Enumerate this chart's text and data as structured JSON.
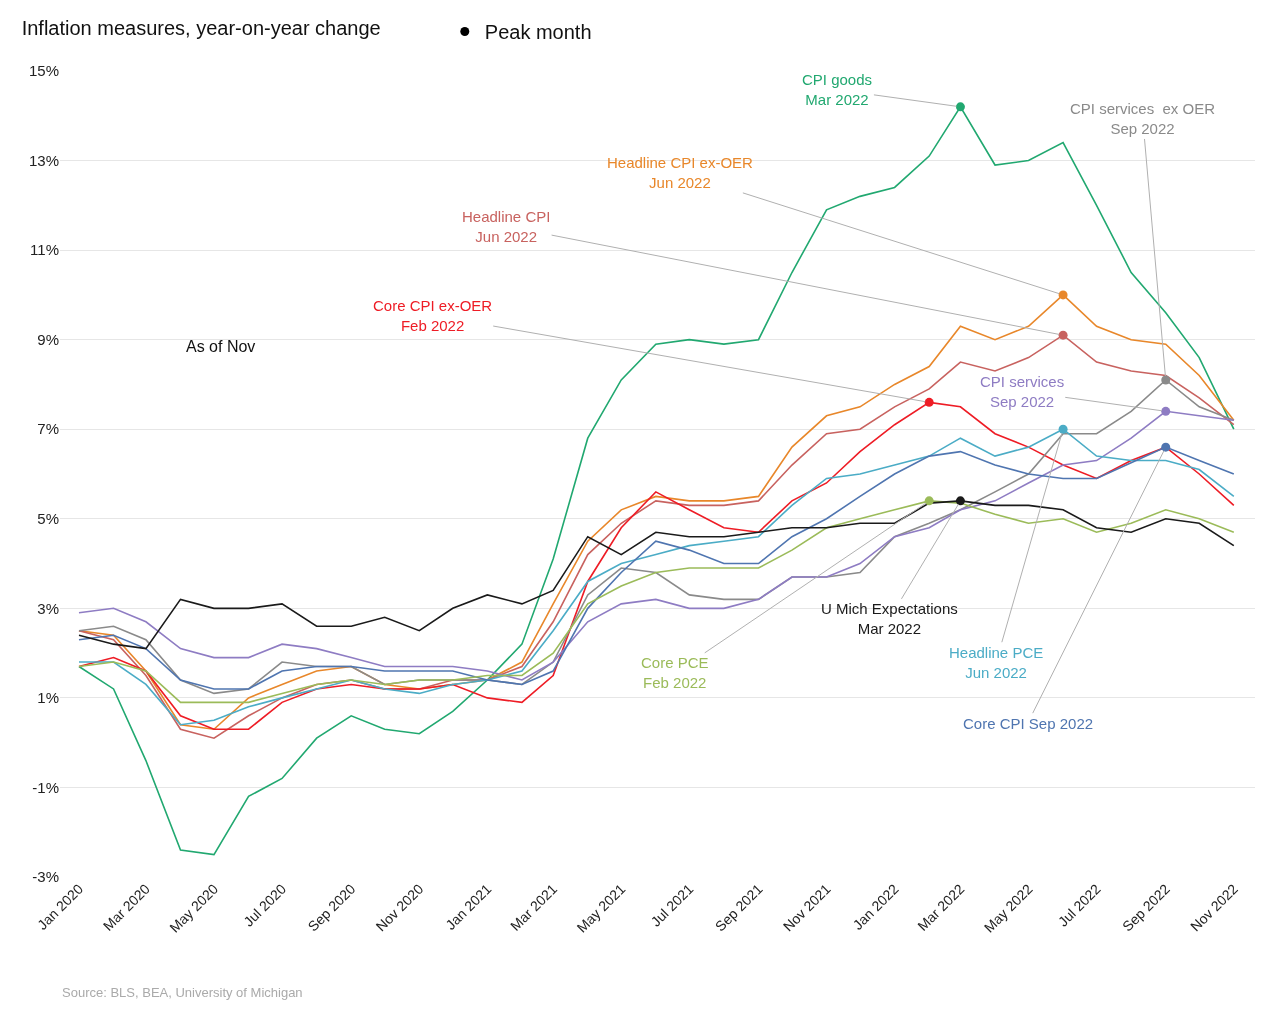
{
  "chart_data": {
    "type": "line",
    "title": "Inflation measures, year-on-year change",
    "x": [
      "2020-01",
      "2020-02",
      "2020-03",
      "2020-04",
      "2020-05",
      "2020-06",
      "2020-07",
      "2020-08",
      "2020-09",
      "2020-10",
      "2020-11",
      "2020-12",
      "2021-01",
      "2021-02",
      "2021-03",
      "2021-04",
      "2021-05",
      "2021-06",
      "2021-07",
      "2021-08",
      "2021-09",
      "2021-10",
      "2021-11",
      "2021-12",
      "2022-01",
      "2022-02",
      "2022-03",
      "2022-04",
      "2022-05",
      "2022-06",
      "2022-07",
      "2022-08",
      "2022-09",
      "2022-10",
      "2022-11"
    ],
    "xlim": [
      "2019-12-15",
      "2022-11-20"
    ],
    "xticks": [
      {
        "value": "2020-01",
        "label": "Jan 2020"
      },
      {
        "value": "2020-03",
        "label": "Mar 2020"
      },
      {
        "value": "2020-05",
        "label": "May 2020"
      },
      {
        "value": "2020-07",
        "label": "Jul 2020"
      },
      {
        "value": "2020-09",
        "label": "Sep 2020"
      },
      {
        "value": "2020-11",
        "label": "Nov 2020"
      },
      {
        "value": "2021-01",
        "label": "Jan 2021"
      },
      {
        "value": "2021-03",
        "label": "Mar 2021"
      },
      {
        "value": "2021-05",
        "label": "May 2021"
      },
      {
        "value": "2021-07",
        "label": "Jul 2021"
      },
      {
        "value": "2021-09",
        "label": "Sep 2021"
      },
      {
        "value": "2021-11",
        "label": "Nov 2021"
      },
      {
        "value": "2022-01",
        "label": "Jan 2022"
      },
      {
        "value": "2022-03",
        "label": "Mar 2022"
      },
      {
        "value": "2022-05",
        "label": "May 2022"
      },
      {
        "value": "2022-07",
        "label": "Jul 2022"
      },
      {
        "value": "2022-09",
        "label": "Sep 2022"
      },
      {
        "value": "2022-11",
        "label": "Nov 2022"
      }
    ],
    "ylim": [
      -3,
      15
    ],
    "yticks": [
      {
        "value": -3,
        "label": "-3%"
      },
      {
        "value": -1,
        "label": "-1%"
      },
      {
        "value": 1,
        "label": "1%"
      },
      {
        "value": 3,
        "label": "3%"
      },
      {
        "value": 5,
        "label": "5%"
      },
      {
        "value": 7,
        "label": "7%"
      },
      {
        "value": 9,
        "label": "9%"
      },
      {
        "value": 11,
        "label": "11%"
      },
      {
        "value": 13,
        "label": "13%"
      },
      {
        "value": 15,
        "label": "15%"
      }
    ],
    "grid": "y",
    "legend": "top left",
    "marker": "none",
    "line_style": "solid",
    "series": [
      {
        "color": "#21a870",
        "values": [
          1.7,
          1.2,
          -0.4,
          -2.4,
          -2.5,
          -1.2,
          -0.8,
          0.1,
          0.6,
          0.3,
          0.2,
          0.7,
          1.4,
          2.2,
          4.1,
          6.8,
          8.1,
          8.9,
          9.0,
          8.9,
          9.0,
          10.5,
          11.9,
          12.2,
          12.4,
          13.1,
          14.2,
          12.9,
          13.0,
          13.4,
          12.0,
          10.5,
          9.6,
          8.6,
          7.0
        ]
      },
      {
        "color": "#e8872a",
        "values": [
          2.5,
          2.4,
          1.6,
          0.4,
          0.3,
          1.0,
          1.3,
          1.6,
          1.7,
          1.3,
          1.2,
          1.3,
          1.4,
          1.8,
          3.1,
          4.5,
          5.2,
          5.5,
          5.4,
          5.4,
          5.5,
          6.6,
          7.3,
          7.5,
          8.0,
          8.4,
          9.3,
          9.0,
          9.3,
          10.0,
          9.3,
          9.0,
          8.9,
          8.2,
          7.2
        ]
      },
      {
        "color": "#c8625f",
        "values": [
          2.5,
          2.3,
          1.5,
          0.3,
          0.1,
          0.6,
          1.0,
          1.3,
          1.4,
          1.2,
          1.2,
          1.4,
          1.4,
          1.7,
          2.7,
          4.2,
          4.9,
          5.4,
          5.3,
          5.3,
          5.4,
          6.2,
          6.9,
          7.0,
          7.5,
          7.9,
          8.5,
          8.3,
          8.6,
          9.1,
          8.5,
          8.3,
          8.2,
          7.7,
          7.1
        ]
      },
      {
        "color": "#ee1c25",
        "values": [
          1.7,
          1.9,
          1.6,
          0.6,
          0.3,
          0.3,
          0.9,
          1.2,
          1.3,
          1.2,
          1.2,
          1.3,
          1.0,
          0.9,
          1.5,
          3.6,
          4.8,
          5.6,
          5.2,
          4.8,
          4.7,
          5.4,
          5.8,
          6.5,
          7.1,
          7.6,
          7.5,
          6.9,
          6.6,
          6.2,
          5.9,
          6.3,
          6.6,
          6.0,
          5.3
        ]
      },
      {
        "color": "#8a8a8a",
        "values": [
          2.5,
          2.6,
          2.3,
          1.4,
          1.1,
          1.2,
          1.8,
          1.7,
          1.7,
          1.3,
          1.4,
          1.4,
          1.4,
          1.3,
          1.8,
          3.3,
          3.9,
          3.8,
          3.3,
          3.2,
          3.2,
          3.7,
          3.7,
          3.8,
          4.6,
          4.9,
          5.2,
          5.6,
          6.0,
          6.9,
          6.9,
          7.4,
          8.1,
          7.5,
          7.2
        ]
      },
      {
        "color": "#8e7cc3",
        "values": [
          2.9,
          3.0,
          2.7,
          2.1,
          1.9,
          1.9,
          2.2,
          2.1,
          1.9,
          1.7,
          1.7,
          1.7,
          1.6,
          1.4,
          1.8,
          2.7,
          3.1,
          3.2,
          3.0,
          3.0,
          3.2,
          3.7,
          3.7,
          4.0,
          4.6,
          4.8,
          5.2,
          5.4,
          5.8,
          6.2,
          6.3,
          6.8,
          7.4,
          7.3,
          7.2
        ]
      },
      {
        "color": "#4bacc6",
        "values": [
          1.8,
          1.8,
          1.3,
          0.4,
          0.5,
          0.8,
          1.0,
          1.2,
          1.4,
          1.2,
          1.1,
          1.3,
          1.4,
          1.6,
          2.5,
          3.6,
          4.0,
          4.2,
          4.4,
          4.5,
          4.6,
          5.3,
          5.9,
          6.0,
          6.2,
          6.4,
          6.8,
          6.4,
          6.6,
          7.0,
          6.4,
          6.3,
          6.3,
          6.1,
          5.5
        ]
      },
      {
        "color": "#4f75b0",
        "values": [
          2.3,
          2.4,
          2.1,
          1.4,
          1.2,
          1.2,
          1.6,
          1.7,
          1.7,
          1.6,
          1.6,
          1.6,
          1.4,
          1.3,
          1.6,
          3.0,
          3.8,
          4.5,
          4.3,
          4.0,
          4.0,
          4.6,
          5.0,
          5.5,
          6.0,
          6.4,
          6.5,
          6.2,
          6.0,
          5.9,
          5.9,
          6.25,
          6.6,
          6.3,
          6.0
        ]
      },
      {
        "color": "#9bbb59",
        "values": [
          1.7,
          1.8,
          1.6,
          0.9,
          0.9,
          0.9,
          1.1,
          1.3,
          1.4,
          1.3,
          1.4,
          1.4,
          1.5,
          1.5,
          2.0,
          3.1,
          3.5,
          3.8,
          3.9,
          3.9,
          3.9,
          4.3,
          4.8,
          5.0,
          5.2,
          5.4,
          5.35,
          5.1,
          4.9,
          5.0,
          4.7,
          4.9,
          5.2,
          5.0,
          4.7
        ]
      },
      {
        "color": "#1a1a1a",
        "values": [
          2.4,
          2.2,
          2.1,
          3.2,
          3.0,
          3.0,
          3.1,
          2.6,
          2.6,
          2.8,
          2.5,
          3.0,
          3.3,
          3.1,
          3.4,
          4.6,
          4.2,
          4.7,
          4.6,
          4.6,
          4.7,
          4.8,
          4.8,
          4.9,
          4.9,
          5.35,
          5.4,
          5.3,
          5.3,
          5.2,
          4.8,
          4.7,
          5.0,
          4.9,
          4.4
        ]
      },
      {
        "name": "Peak month",
        "type": "scatter",
        "marker": "circle",
        "color": "#000000",
        "x": [
          "2022-03",
          "2022-06",
          "2022-06",
          "2022-02",
          "2022-09",
          "2022-09",
          "2022-06",
          "2022-09",
          "2022-02",
          "2022-03"
        ],
        "values": [
          14.2,
          10.0,
          9.1,
          7.6,
          8.1,
          7.4,
          7.0,
          6.6,
          5.4,
          5.4
        ],
        "colors": [
          "#21a870",
          "#e8872a",
          "#c8625f",
          "#ee1c25",
          "#8a8a8a",
          "#8e7cc3",
          "#4bacc6",
          "#4f75b0",
          "#9bbb59",
          "#1a1a1a"
        ]
      }
    ],
    "annotations": [
      {
        "text": "CPI goods\nMar 2022",
        "x": "2022-03",
        "y": 14.2
      },
      {
        "text": "Headline CPI ex-OER\nJun 2022",
        "x": "2022-06",
        "y": 10.0
      },
      {
        "text": "Headline CPI\nJun 2022",
        "x": "2022-06",
        "y": 9.1
      },
      {
        "text": "Core CPI ex-OER\nFeb 2022",
        "x": "2022-02",
        "y": 7.6
      },
      {
        "text": "CPI services  ex OER\nSep 2022",
        "x": "2022-09",
        "y": 8.1
      },
      {
        "text": "CPI services\nSep 2022",
        "x": "2022-09",
        "y": 7.4
      },
      {
        "text": "Headline PCE\nJun 2022",
        "x": "2022-06",
        "y": 7.0
      },
      {
        "text": "Core CPI Sep 2022",
        "x": "2022-09",
        "y": 6.6
      },
      {
        "text": "Core PCE\nFeb 2022",
        "x": "2022-02",
        "y": 5.4
      },
      {
        "text": "U Mich Expectations\nMar 2022",
        "x": "2022-03",
        "y": 5.4
      },
      "As of Nov",
      "Source: BLS, BEA, University of Michigan"
    ]
  }
}
